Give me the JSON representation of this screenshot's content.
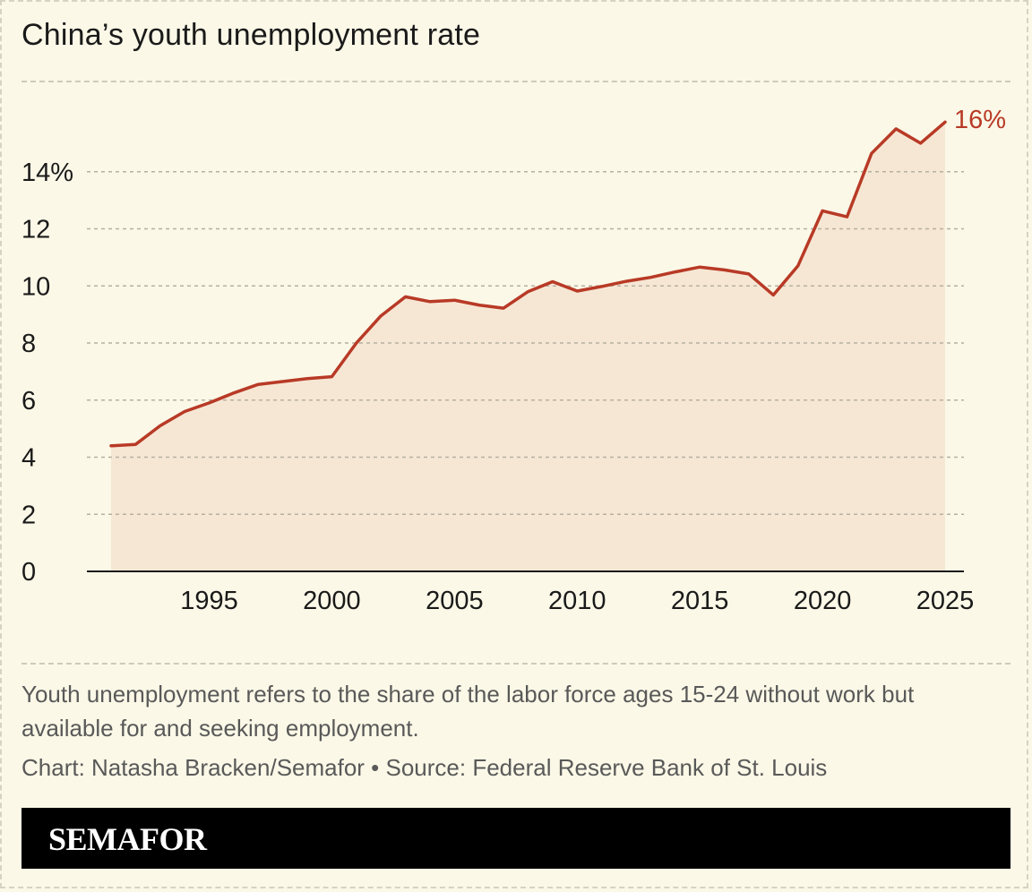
{
  "title": "China’s youth unemployment rate",
  "note": "Youth unemployment refers to the share of the labor force ages 15-24 without work but available for and seeking employment.",
  "credit": "Chart: Natasha Bracken/Semafor • Source: Federal Reserve Bank of St. Louis",
  "brand": "SEMAFOR",
  "colors": {
    "background": "#fbf8e7",
    "line": "#b83a26",
    "area": "#f6e7d4",
    "grid": "#b5b0a2",
    "text": "#1a1a1a",
    "muted": "#595959"
  },
  "chart_data": {
    "type": "area",
    "title": "China’s youth unemployment rate",
    "xlabel": "",
    "ylabel": "",
    "xlim": [
      1991,
      2025
    ],
    "ylim": [
      0,
      16
    ],
    "grid": true,
    "x_ticks": [
      "1995",
      "2000",
      "2005",
      "2010",
      "2015",
      "2020",
      "2025"
    ],
    "y_ticks": [
      "0",
      "2",
      "4",
      "6",
      "8",
      "10",
      "12",
      "14%"
    ],
    "end_label": "16%",
    "x": [
      1991,
      1992,
      1993,
      1994,
      1995,
      1996,
      1997,
      1998,
      1999,
      2000,
      2001,
      2002,
      2003,
      2004,
      2005,
      2006,
      2007,
      2008,
      2009,
      2010,
      2011,
      2012,
      2013,
      2014,
      2015,
      2016,
      2017,
      2018,
      2019,
      2020,
      2021,
      2022,
      2023,
      2024,
      2025
    ],
    "values": [
      4.4,
      4.45,
      5.1,
      5.6,
      5.9,
      6.25,
      6.55,
      6.65,
      6.75,
      6.82,
      8.0,
      8.95,
      9.62,
      9.45,
      9.5,
      9.33,
      9.22,
      9.8,
      10.15,
      9.82,
      9.98,
      10.16,
      10.3,
      10.49,
      10.66,
      10.56,
      10.42,
      9.68,
      10.7,
      12.63,
      12.42,
      14.64,
      15.5,
      15.0,
      15.74
    ]
  }
}
